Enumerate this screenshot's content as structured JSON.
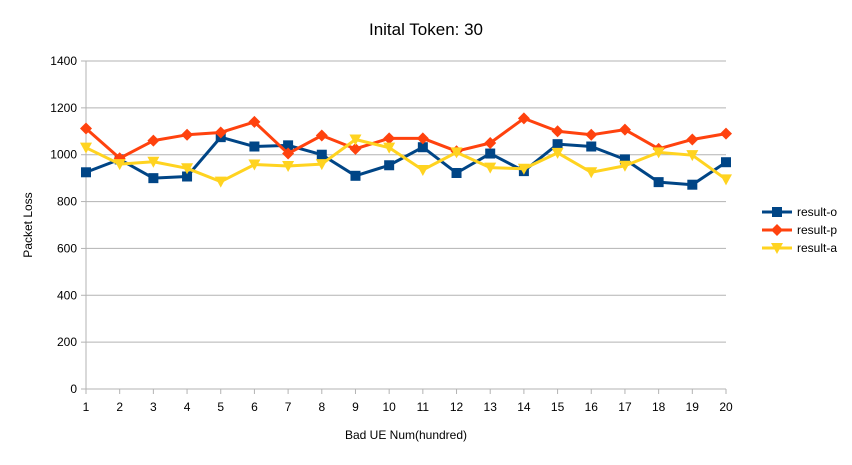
{
  "chart_data": {
    "type": "line",
    "title": "Inital Token: 30",
    "xlabel": "Bad UE Num(hundred)",
    "ylabel": "Packet Loss",
    "x": [
      1,
      2,
      3,
      4,
      5,
      6,
      7,
      8,
      9,
      10,
      11,
      12,
      13,
      14,
      15,
      16,
      17,
      18,
      19,
      20
    ],
    "ylim": [
      0,
      1400
    ],
    "yticks": [
      0,
      200,
      400,
      600,
      800,
      1000,
      1200,
      1400
    ],
    "grid": "horizontal",
    "legend_position": "right",
    "series": [
      {
        "name": "result-o",
        "color": "#004586",
        "marker": "square",
        "values": [
          925,
          980,
          900,
          907,
          1075,
          1035,
          1040,
          1000,
          910,
          955,
          1032,
          922,
          1005,
          930,
          1045,
          1035,
          980,
          883,
          872,
          968
        ]
      },
      {
        "name": "result-p",
        "color": "#ff420e",
        "marker": "diamond",
        "values": [
          1112,
          985,
          1060,
          1085,
          1095,
          1140,
          1005,
          1082,
          1025,
          1070,
          1070,
          1015,
          1050,
          1155,
          1100,
          1085,
          1107,
          1025,
          1065,
          1090
        ]
      },
      {
        "name": "result-a",
        "color": "#ffd320",
        "marker": "triangle-down",
        "values": [
          1030,
          960,
          970,
          942,
          885,
          958,
          952,
          960,
          1065,
          1030,
          935,
          1010,
          945,
          940,
          1008,
          925,
          953,
          1010,
          998,
          895
        ]
      }
    ]
  }
}
